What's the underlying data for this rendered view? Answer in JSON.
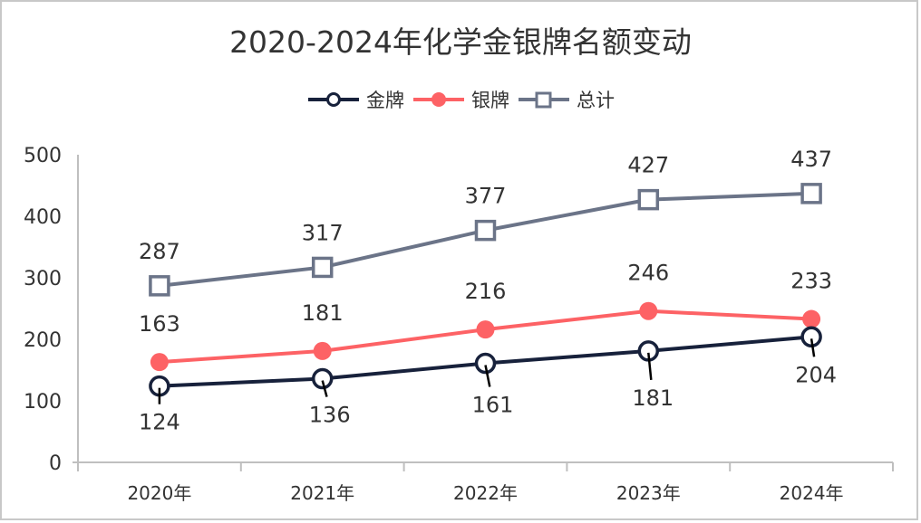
{
  "chart_data": {
    "type": "line",
    "title": "2020-2024年化学金银牌名额变动",
    "categories": [
      "2020年",
      "2021年",
      "2022年",
      "2023年",
      "2024年"
    ],
    "series": [
      {
        "name": "金牌",
        "values": [
          124,
          136,
          161,
          181,
          204
        ],
        "color": "#17213b",
        "marker": "circle-hollow",
        "label_position": "below"
      },
      {
        "name": "银牌",
        "values": [
          163,
          181,
          216,
          246,
          233
        ],
        "color": "#fd6265",
        "marker": "circle-filled",
        "label_position": "above"
      },
      {
        "name": "总计",
        "values": [
          287,
          317,
          377,
          427,
          437
        ],
        "color": "#6b7488",
        "marker": "square-hollow",
        "label_position": "above"
      }
    ],
    "xlabel": "",
    "ylabel": "",
    "ylim": [
      0,
      500
    ],
    "yticks": [
      0,
      100,
      200,
      300,
      400,
      500
    ],
    "grid": false,
    "legend_position": "top-center"
  }
}
